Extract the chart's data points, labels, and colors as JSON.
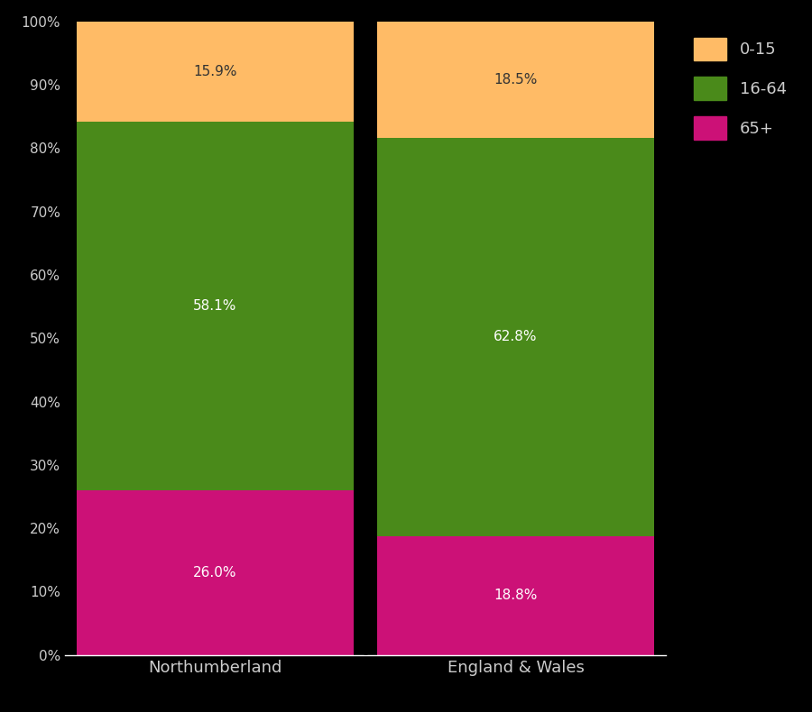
{
  "categories": [
    "Northumberland",
    "England & Wales"
  ],
  "segments": {
    "65+": [
      26.0,
      18.8
    ],
    "16-64": [
      58.1,
      62.8
    ],
    "0-15": [
      15.9,
      18.5
    ]
  },
  "colors": {
    "65+": "#CC1177",
    "16-64": "#4A8A1A",
    "0-15": "#FFBB66"
  },
  "segment_order": [
    "65+",
    "16-64",
    "0-15"
  ],
  "label_colors": {
    "65+": "white",
    "16-64": "white",
    "0-15": "#333333"
  },
  "background_color": "#000000",
  "text_color": "#cccccc",
  "axis_color": "#ffffff",
  "legend_order": [
    "0-15",
    "16-64",
    "65+"
  ],
  "bar_width": 0.92,
  "figsize": [
    9.0,
    7.9
  ],
  "dpi": 100,
  "label_fontsize": 11,
  "tick_fontsize": 11,
  "xticklabel_fontsize": 13,
  "legend_fontsize": 13
}
